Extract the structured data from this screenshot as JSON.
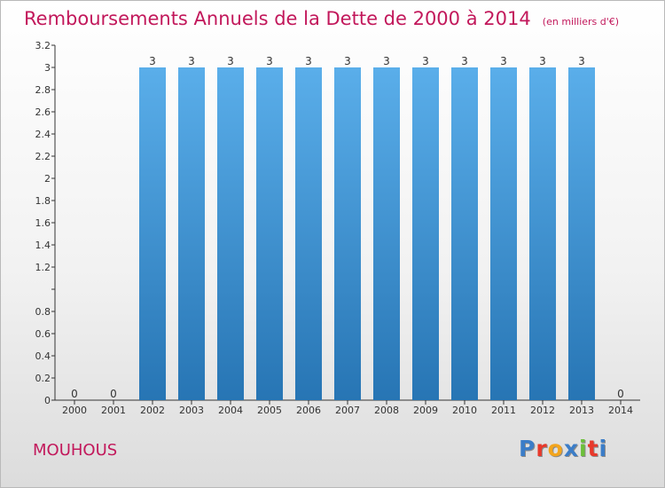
{
  "header": {
    "title": "Remboursements Annuels de la Dette de 2000 à 2014",
    "unit": "(en milliers d'€)"
  },
  "footer": {
    "commune": "MOUHOUS",
    "brand_letters": [
      "P",
      "r",
      "o",
      "x",
      "i",
      "t",
      "i"
    ]
  },
  "colors": {
    "title": "#c2185b",
    "bar_top": "#5aaeea",
    "bar_bottom": "#2775b4",
    "brand": [
      "#3b7dc8",
      "#e8392b",
      "#f3a51d",
      "#3b7dc8",
      "#6cbf3a",
      "#e8392b",
      "#3b7dc8"
    ]
  },
  "chart_data": {
    "type": "bar",
    "title": "Remboursements Annuels de la Dette de 2000 à 2014",
    "xlabel": "",
    "ylabel": "",
    "categories": [
      "2000",
      "2001",
      "2002",
      "2003",
      "2004",
      "2005",
      "2006",
      "2007",
      "2008",
      "2009",
      "2010",
      "2011",
      "2012",
      "2013",
      "2014"
    ],
    "values": [
      0,
      0,
      3,
      3,
      3,
      3,
      3,
      3,
      3,
      3,
      3,
      3,
      3,
      3,
      0
    ],
    "value_labels": [
      "0",
      "0",
      "3",
      "3",
      "3",
      "3",
      "3",
      "3",
      "3",
      "3",
      "3",
      "3",
      "3",
      "3",
      "0"
    ],
    "ylim": [
      0,
      3.2
    ],
    "y_ticks": [
      0,
      0.2,
      0.4,
      0.6,
      0.8,
      1,
      1.2,
      1.4,
      1.6,
      1.8,
      2,
      2.2,
      2.4,
      2.6,
      2.8,
      3,
      3.2
    ],
    "y_tick_labels": [
      "0",
      "0.2",
      "0.4",
      "0.6",
      "0.8",
      "",
      "1.2",
      "1.4",
      "1.6",
      "1.8",
      "2",
      "2.2",
      "2.4",
      "2.6",
      "2.8",
      "3",
      "3.2"
    ],
    "grid": false,
    "legend": "none"
  }
}
